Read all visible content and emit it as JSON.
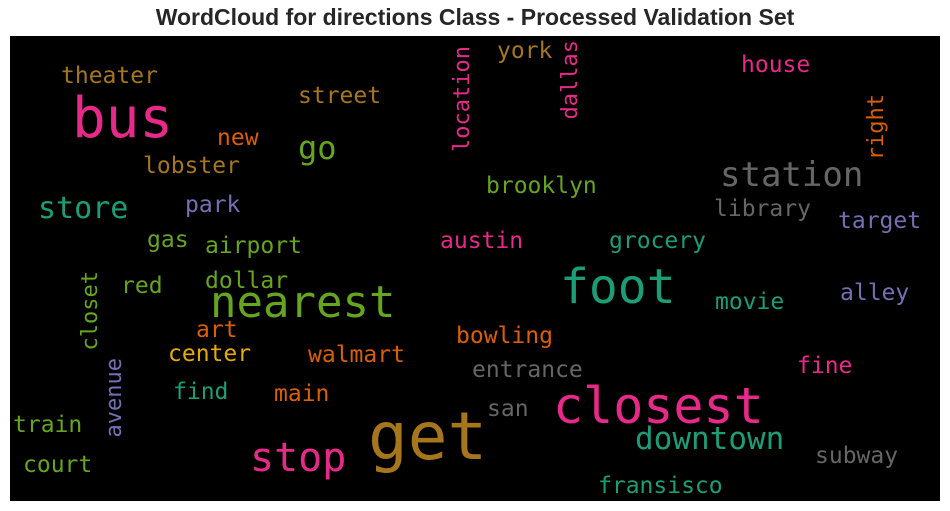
{
  "chart_data": {
    "type": "wordcloud",
    "title": "WordCloud for directions Class - Processed Validation Set",
    "background": "#000000",
    "words": [
      {
        "text": "get",
        "size": 66,
        "color": "#a6761d",
        "orient": "h"
      },
      {
        "text": "bus",
        "size": 56,
        "color": "#e7298a",
        "orient": "h"
      },
      {
        "text": "closest",
        "size": 50,
        "color": "#e7298a",
        "orient": "h"
      },
      {
        "text": "foot",
        "size": 48,
        "color": "#1b9e77",
        "orient": "h"
      },
      {
        "text": "nearest",
        "size": 44,
        "color": "#66a61e",
        "orient": "h"
      },
      {
        "text": "stop",
        "size": 40,
        "color": "#e7298a",
        "orient": "h"
      },
      {
        "text": "station",
        "size": 34,
        "color": "#666666",
        "orient": "h"
      },
      {
        "text": "downtown",
        "size": 31,
        "color": "#1b9e77",
        "orient": "h"
      },
      {
        "text": "go",
        "size": 32,
        "color": "#66a61e",
        "orient": "h"
      },
      {
        "text": "store",
        "size": 30,
        "color": "#1b9e77",
        "orient": "h"
      },
      {
        "text": "location",
        "size": 22,
        "color": "#e7298a",
        "orient": "v"
      },
      {
        "text": "dallas",
        "size": 22,
        "color": "#e7298a",
        "orient": "v"
      },
      {
        "text": "right",
        "size": 22,
        "color": "#d95f02",
        "orient": "v"
      },
      {
        "text": "closet",
        "size": 22,
        "color": "#66a61e",
        "orient": "v"
      },
      {
        "text": "avenue",
        "size": 22,
        "color": "#7570b3",
        "orient": "v"
      },
      {
        "text": "york",
        "size": 23,
        "color": "#a6761d",
        "orient": "h"
      },
      {
        "text": "house",
        "size": 23,
        "color": "#e7298a",
        "orient": "h"
      },
      {
        "text": "theater",
        "size": 23,
        "color": "#a6761d",
        "orient": "h"
      },
      {
        "text": "street",
        "size": 23,
        "color": "#a6761d",
        "orient": "h"
      },
      {
        "text": "new",
        "size": 23,
        "color": "#d95f02",
        "orient": "h"
      },
      {
        "text": "lobster",
        "size": 23,
        "color": "#a6761d",
        "orient": "h"
      },
      {
        "text": "brooklyn",
        "size": 23,
        "color": "#66a61e",
        "orient": "h"
      },
      {
        "text": "park",
        "size": 23,
        "color": "#7570b3",
        "orient": "h"
      },
      {
        "text": "library",
        "size": 23,
        "color": "#666666",
        "orient": "h"
      },
      {
        "text": "target",
        "size": 23,
        "color": "#7570b3",
        "orient": "h"
      },
      {
        "text": "gas",
        "size": 23,
        "color": "#66a61e",
        "orient": "h"
      },
      {
        "text": "airport",
        "size": 23,
        "color": "#66a61e",
        "orient": "h"
      },
      {
        "text": "austin",
        "size": 23,
        "color": "#e7298a",
        "orient": "h"
      },
      {
        "text": "grocery",
        "size": 23,
        "color": "#1b9e77",
        "orient": "h"
      },
      {
        "text": "red",
        "size": 23,
        "color": "#66a61e",
        "orient": "h"
      },
      {
        "text": "dollar",
        "size": 23,
        "color": "#66a61e",
        "orient": "h"
      },
      {
        "text": "movie",
        "size": 23,
        "color": "#1b9e77",
        "orient": "h"
      },
      {
        "text": "alley",
        "size": 23,
        "color": "#7570b3",
        "orient": "h"
      },
      {
        "text": "art",
        "size": 23,
        "color": "#d95f02",
        "orient": "h"
      },
      {
        "text": "bowling",
        "size": 23,
        "color": "#d95f02",
        "orient": "h"
      },
      {
        "text": "center",
        "size": 23,
        "color": "#e6ab02",
        "orient": "h"
      },
      {
        "text": "walmart",
        "size": 23,
        "color": "#d95f02",
        "orient": "h"
      },
      {
        "text": "entrance",
        "size": 23,
        "color": "#666666",
        "orient": "h"
      },
      {
        "text": "fine",
        "size": 23,
        "color": "#e7298a",
        "orient": "h"
      },
      {
        "text": "find",
        "size": 23,
        "color": "#1b9e77",
        "orient": "h"
      },
      {
        "text": "main",
        "size": 23,
        "color": "#d95f02",
        "orient": "h"
      },
      {
        "text": "san",
        "size": 23,
        "color": "#666666",
        "orient": "h"
      },
      {
        "text": "train",
        "size": 23,
        "color": "#66a61e",
        "orient": "h"
      },
      {
        "text": "court",
        "size": 23,
        "color": "#66a61e",
        "orient": "h"
      },
      {
        "text": "subway",
        "size": 23,
        "color": "#666666",
        "orient": "h"
      },
      {
        "text": "fransisco",
        "size": 23,
        "color": "#1b9e77",
        "orient": "h"
      }
    ]
  }
}
